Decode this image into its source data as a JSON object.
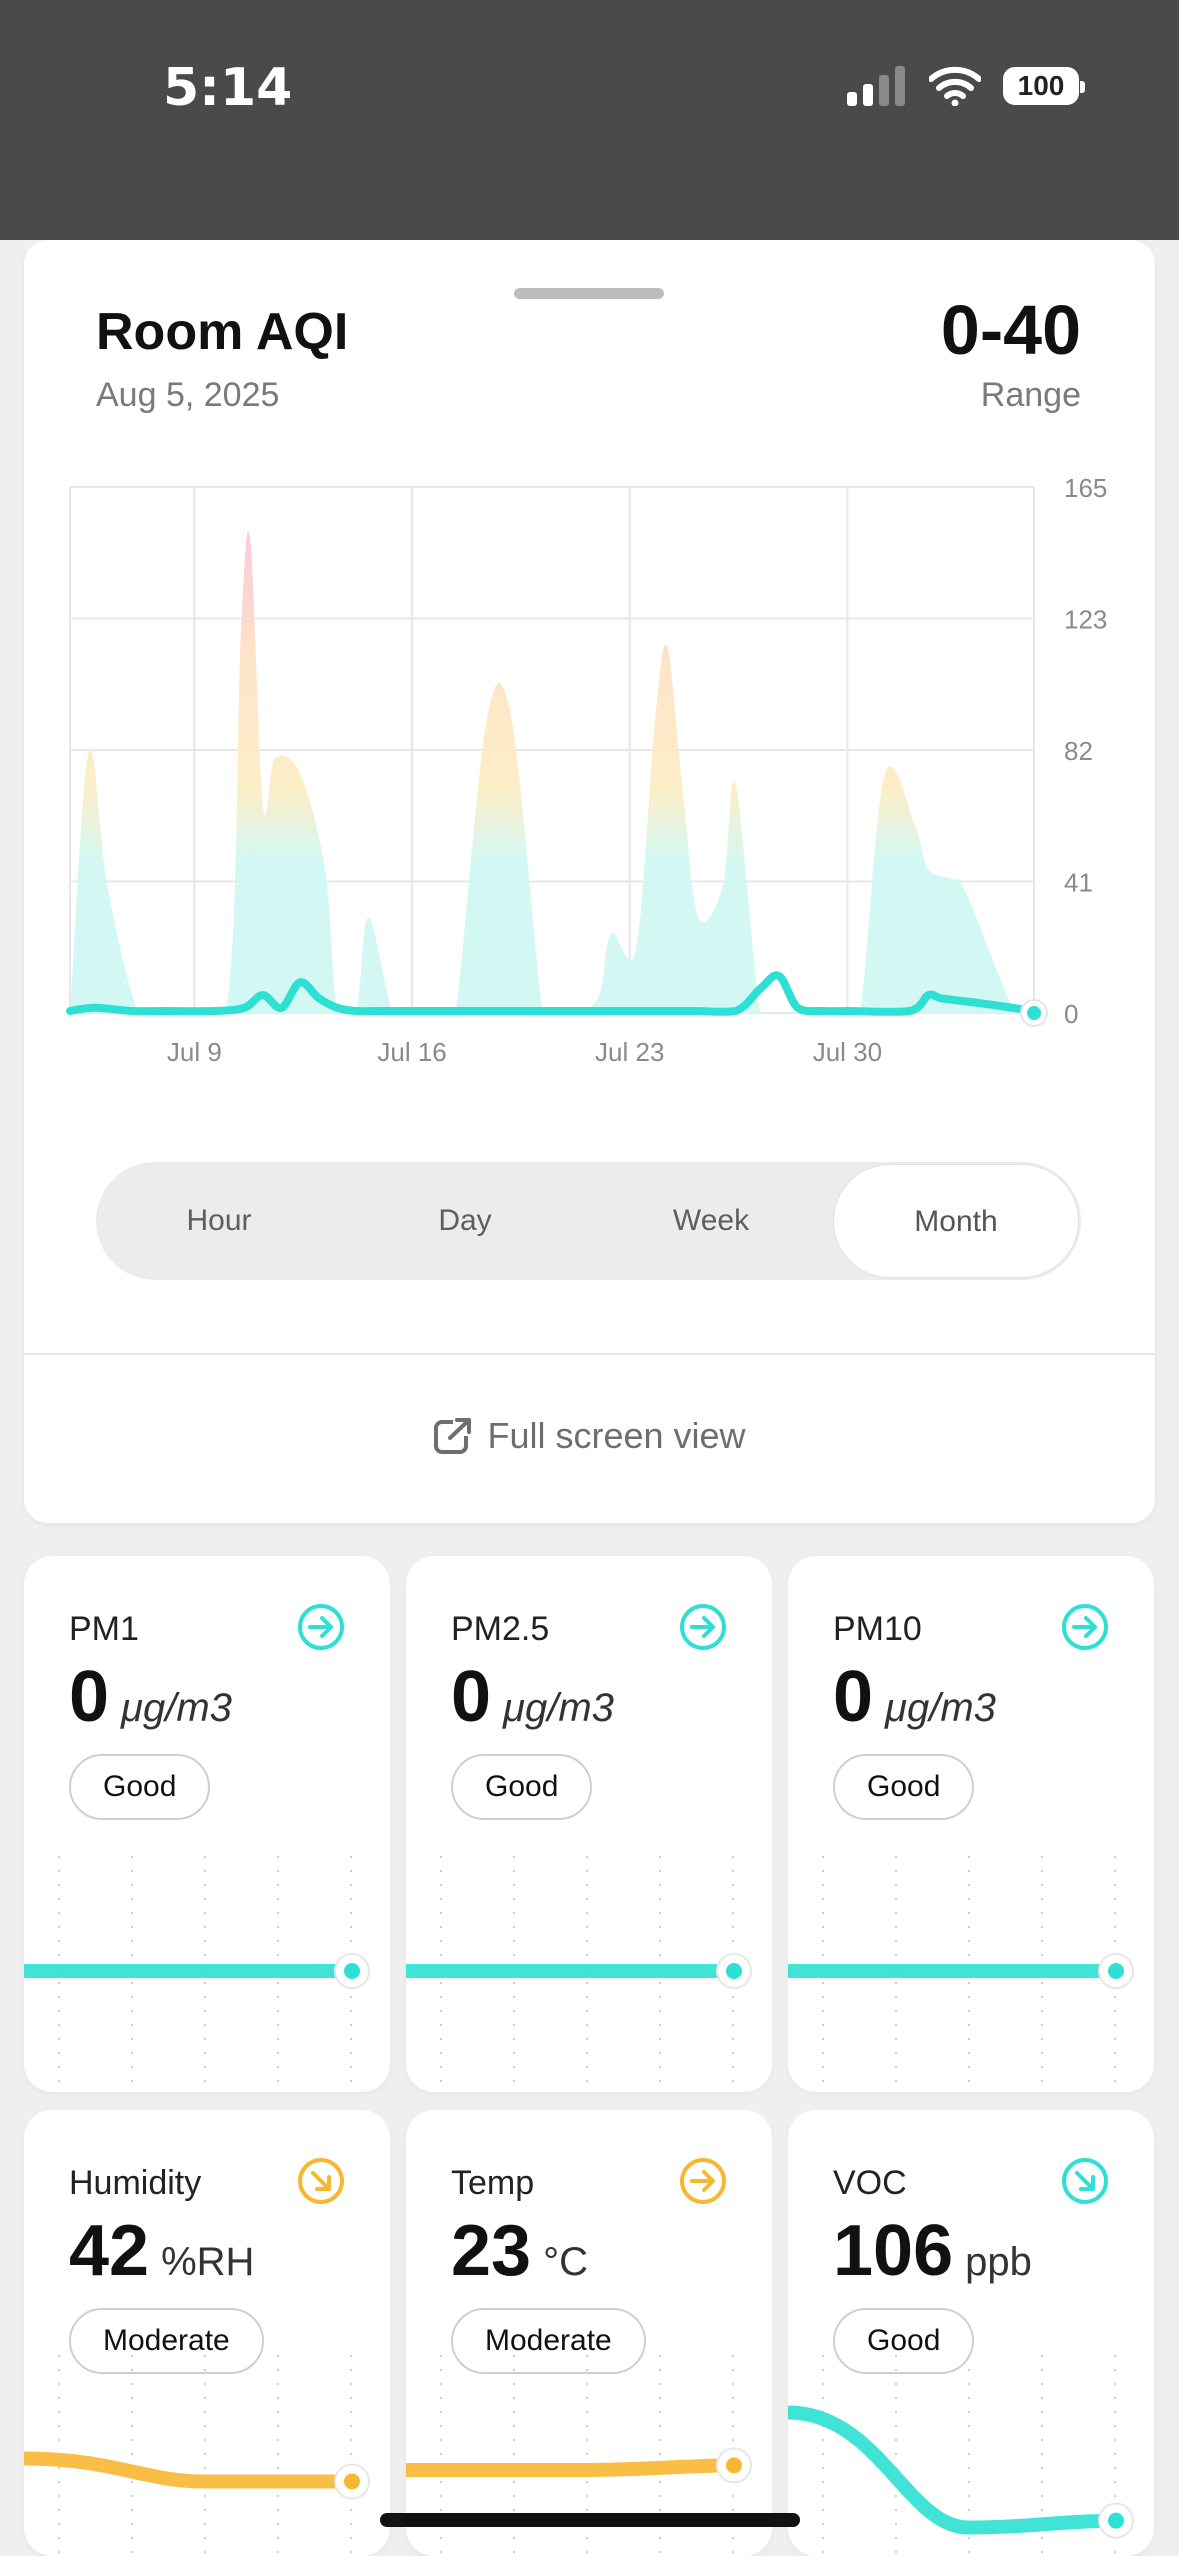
{
  "status_bar": {
    "time": "5:14",
    "battery": "100"
  },
  "sheet": {
    "title": "Room AQI",
    "date": "Aug 5, 2025",
    "range_value": "0-40",
    "range_label": "Range",
    "segments": [
      "Hour",
      "Day",
      "Week",
      "Month"
    ],
    "active_segment": "Month",
    "full_screen_label": "Full screen view"
  },
  "chart_data": {
    "type": "area",
    "title": "",
    "xlabel": "",
    "ylabel": "",
    "ylim": [
      0,
      165
    ],
    "y_ticks": [
      "165",
      "123",
      "82",
      "41",
      "0"
    ],
    "x_ticks": [
      "Jul 9",
      "Jul 16",
      "Jul 23",
      "Jul 30"
    ],
    "x_tick_days": [
      9,
      16,
      23,
      30
    ],
    "x_range_days": [
      5,
      36
    ],
    "grid": true,
    "series": [
      {
        "values_day": [
          5,
          5.6,
          6.2,
          7.2,
          8,
          10,
          10.5,
          10.8,
          11.2,
          11.6,
          12.4,
          13.2,
          13.6,
          14.2,
          14.6,
          15.4,
          16.2,
          17,
          17.4,
          18.4,
          19.2,
          20.2,
          20.6,
          21.2,
          22,
          22.4,
          23.2,
          23.8,
          24.2,
          24.7,
          25.2,
          26,
          26.4,
          27.2,
          27.8,
          28.4,
          29.8,
          30.4,
          31.2,
          32.2,
          32.6,
          33.4,
          33.8,
          35.4,
          36
        ],
        "values_max": [
          0,
          82,
          40,
          0,
          0,
          0,
          120,
          148,
          65,
          80,
          75,
          45,
          0,
          0,
          30,
          0,
          0,
          0,
          0,
          92,
          92,
          0,
          0,
          0,
          5,
          25,
          20,
          90,
          115,
          70,
          30,
          40,
          72,
          0,
          0,
          0,
          0,
          0,
          75,
          58,
          45,
          42,
          38,
          0,
          0
        ]
      },
      {
        "values_day": [
          5,
          5.8,
          7,
          8,
          9.6,
          10.6,
          11.2,
          11.8,
          12.4,
          13,
          13.6,
          14.2,
          15,
          17,
          19,
          21,
          23,
          25,
          26.4,
          27.2,
          27.8,
          28.4,
          29.2,
          30,
          32,
          32.6,
          33,
          33.8,
          34.6,
          36
        ],
        "values": [
          0,
          1,
          0,
          0,
          0,
          1,
          5,
          1,
          9,
          4,
          1,
          0,
          0,
          0,
          0,
          0,
          0,
          0,
          0,
          7,
          11,
          1,
          0,
          0,
          0,
          5,
          4,
          3,
          2,
          0
        ]
      }
    ]
  },
  "cards": [
    {
      "name": "PM1",
      "value": "0",
      "unit": "μg/m3",
      "status": "Good",
      "color": "#2ee0d3",
      "trend_icon": "arrow-right-icon",
      "spark_y": [
        0.5,
        0.5,
        0.5
      ]
    },
    {
      "name": "PM2.5",
      "value": "0",
      "unit": "μg/m3",
      "status": "Good",
      "color": "#2ee0d3",
      "trend_icon": "arrow-right-icon",
      "spark_y": [
        0.5,
        0.5,
        0.5
      ]
    },
    {
      "name": "PM10",
      "value": "0",
      "unit": "μg/m3",
      "status": "Good",
      "color": "#2ee0d3",
      "trend_icon": "arrow-right-icon",
      "spark_y": [
        0.5,
        0.5,
        0.5
      ]
    },
    {
      "name": "Humidity",
      "value": "42",
      "unit": "%RH",
      "status": "Moderate",
      "color": "#f7b731",
      "trend_icon": "arrow-down-right-icon",
      "spark_y": [
        0.45,
        0.55,
        0.55
      ]
    },
    {
      "name": "Temp",
      "value": "23",
      "unit": "°C",
      "status": "Moderate",
      "color": "#f7b731",
      "trend_icon": "arrow-right-icon",
      "spark_y": [
        0.5,
        0.5,
        0.48
      ]
    },
    {
      "name": "VOC",
      "value": "106",
      "unit": "ppb",
      "status": "Good",
      "color": "#2ee0d3",
      "trend_icon": "arrow-down-right-icon",
      "spark_y": [
        0.25,
        0.75,
        0.72
      ]
    }
  ]
}
